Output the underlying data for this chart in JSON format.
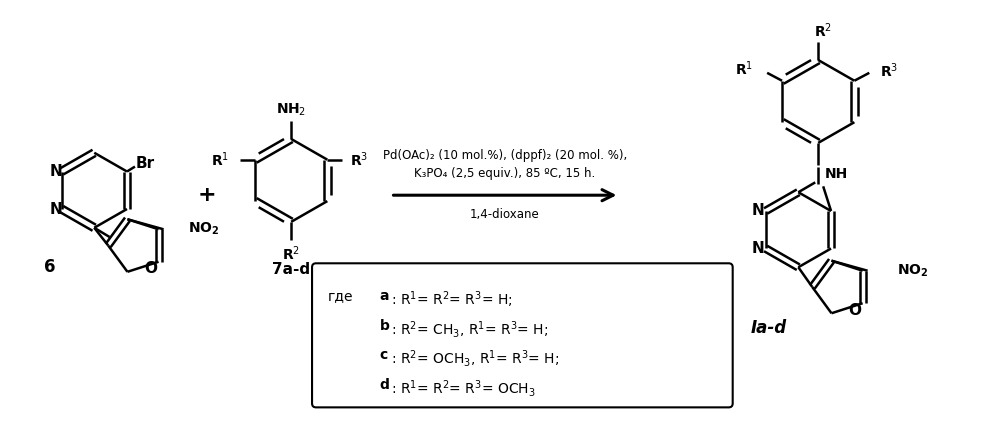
{
  "background_color": "#ffffff",
  "figsize": [
    9.98,
    4.21
  ],
  "dpi": 100,
  "conditions_line1": "Pd(OAc)₂ (10 mol.%), (dppf)₂ (20 mol. %),",
  "conditions_line2": "K₃PO₄ (2,5 equiv.), 85 ºC, 15 h.",
  "conditions_line3": "1,4-dioxane",
  "label_6": "6",
  "label_7ad": "7a-d",
  "label_Iad": "Ia-d",
  "label_plus": "+"
}
